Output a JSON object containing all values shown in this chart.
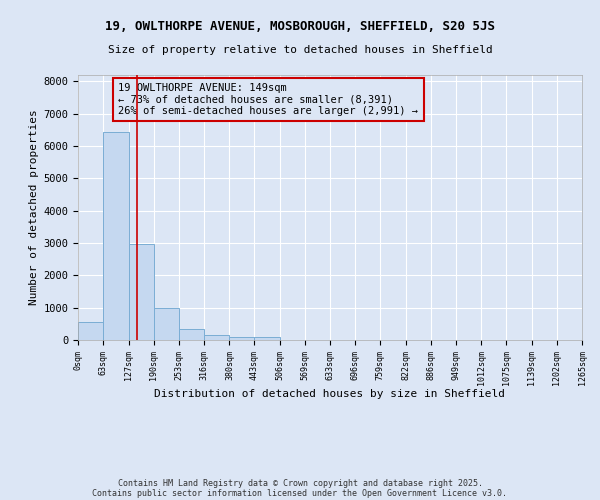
{
  "title_line1": "19, OWLTHORPE AVENUE, MOSBOROUGH, SHEFFIELD, S20 5JS",
  "title_line2": "Size of property relative to detached houses in Sheffield",
  "xlabel": "Distribution of detached houses by size in Sheffield",
  "ylabel": "Number of detached properties",
  "bar_color": "#c5d8f0",
  "bar_edge_color": "#7aadd4",
  "bg_color": "#dce6f5",
  "grid_color": "#ffffff",
  "annotation_text": "19 OWLTHORPE AVENUE: 149sqm\n← 73% of detached houses are smaller (8,391)\n26% of semi-detached houses are larger (2,991) →",
  "annotation_box_color": "#cc0000",
  "vline_x": 149,
  "vline_color": "#cc0000",
  "bin_edges": [
    0,
    63,
    127,
    190,
    253,
    316,
    380,
    443,
    506,
    569,
    633,
    696,
    759,
    822,
    886,
    949,
    1012,
    1075,
    1139,
    1202,
    1265
  ],
  "bin_values": [
    560,
    6450,
    2980,
    990,
    350,
    160,
    100,
    80,
    0,
    0,
    0,
    0,
    0,
    0,
    0,
    0,
    0,
    0,
    0,
    0
  ],
  "ylim": [
    0,
    8200
  ],
  "yticks": [
    0,
    1000,
    2000,
    3000,
    4000,
    5000,
    6000,
    7000,
    8000
  ],
  "footer_line1": "Contains HM Land Registry data © Crown copyright and database right 2025.",
  "footer_line2": "Contains public sector information licensed under the Open Government Licence v3.0."
}
